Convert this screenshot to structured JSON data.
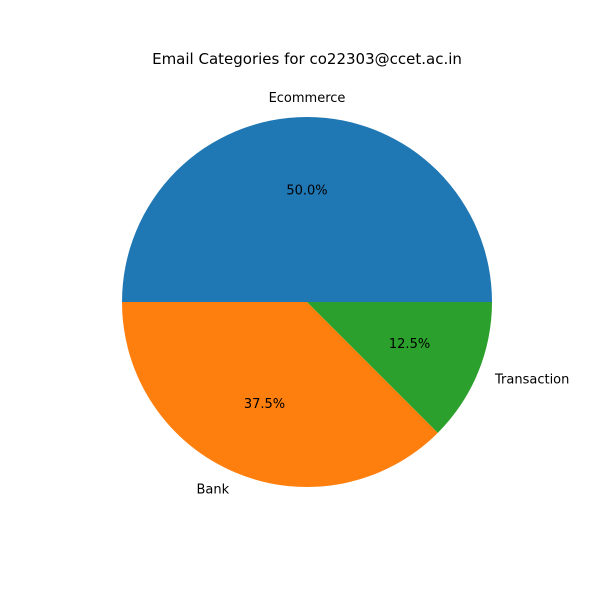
{
  "chart_data": {
    "type": "pie",
    "title": "Email Categories for co22303@ccet.ac.in",
    "slices": [
      {
        "label": "Ecommerce",
        "value": 50.0,
        "percent_label": "50.0%",
        "color": "#1f77b4"
      },
      {
        "label": "Bank",
        "value": 37.5,
        "percent_label": "37.5%",
        "color": "#ff7f0e"
      },
      {
        "label": "Transaction",
        "value": 12.5,
        "percent_label": "12.5%",
        "color": "#2ca02c"
      }
    ],
    "start_angle_degrees": 0,
    "direction": "counterclockwise",
    "legend": "none"
  }
}
